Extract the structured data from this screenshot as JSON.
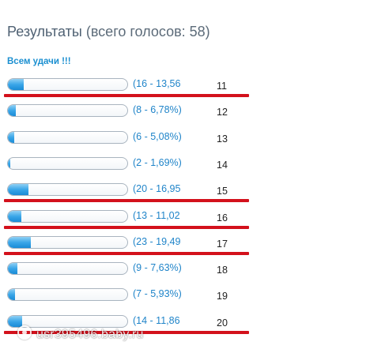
{
  "poll": {
    "title_main": "Результаты",
    "title_sub": "(всего голосов: 58)",
    "subtitle": "Всем удачи !!!",
    "colors": {
      "accent": "#1b8fd0",
      "bar_fill": "#3aa6e8",
      "highlight_line": "#d3111c",
      "title": "#4f6173"
    },
    "rows": [
      {
        "percent_label": "(16 - 13,56",
        "number": "11",
        "fill_fraction": 0.1356,
        "underlined": true
      },
      {
        "percent_label": "(8 - 6,78%)",
        "number": "12",
        "fill_fraction": 0.0678,
        "underlined": false
      },
      {
        "percent_label": "(6 - 5,08%)",
        "number": "13",
        "fill_fraction": 0.0508,
        "underlined": false
      },
      {
        "percent_label": "(2 - 1,69%)",
        "number": "14",
        "fill_fraction": 0.0169,
        "underlined": false
      },
      {
        "percent_label": "(20 - 16,95",
        "number": "15",
        "fill_fraction": 0.1695,
        "underlined": true
      },
      {
        "percent_label": "(13 - 11,02",
        "number": "16",
        "fill_fraction": 0.1102,
        "underlined": true
      },
      {
        "percent_label": "(23 - 19,49",
        "number": "17",
        "fill_fraction": 0.1949,
        "underlined": true
      },
      {
        "percent_label": "(9 - 7,63%)",
        "number": "18",
        "fill_fraction": 0.0763,
        "underlined": false
      },
      {
        "percent_label": "(7 - 5,93%)",
        "number": "19",
        "fill_fraction": 0.0593,
        "underlined": false
      },
      {
        "percent_label": "(14 - 11,86",
        "number": "20",
        "fill_fraction": 0.1186,
        "underlined": true
      }
    ]
  },
  "watermark": {
    "text": "usr395496.baby.ru",
    "icon": "baby-ru-logo-icon"
  }
}
